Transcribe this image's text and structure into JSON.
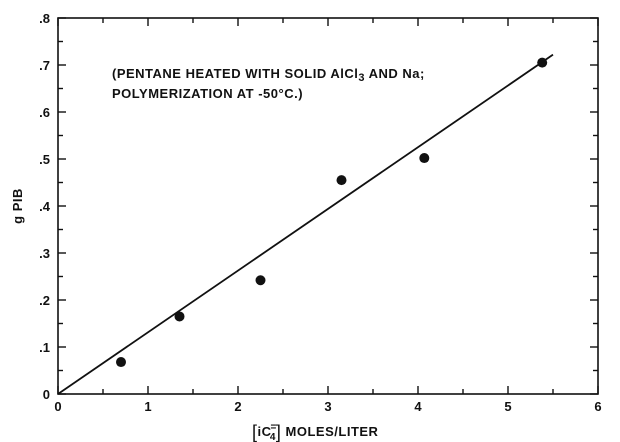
{
  "chart_data": {
    "type": "scatter",
    "title": "",
    "annotation": [
      "(PENTANE HEATED WITH SOLID AlCl",
      "3",
      " AND Na;",
      "POLYMERIZATION AT -50°C.)"
    ],
    "xlabel": {
      "bracket_open": "[",
      "base": "iC",
      "sub": "4",
      "sup": "=",
      "bracket_close": "]",
      "rest": " MOLES/LITER"
    },
    "ylabel": "g PIB",
    "xlim": [
      0,
      6
    ],
    "ylim": [
      0,
      0.8
    ],
    "x_ticks": [
      "0",
      "1",
      "2",
      "3",
      "4",
      "5",
      "6"
    ],
    "y_ticks": [
      "0",
      ".1",
      ".2",
      ".3",
      ".4",
      ".5",
      ".6",
      ".7",
      ".8"
    ],
    "grid": false,
    "points": [
      {
        "x": 0.7,
        "y": 0.068
      },
      {
        "x": 1.35,
        "y": 0.165
      },
      {
        "x": 2.25,
        "y": 0.242
      },
      {
        "x": 3.15,
        "y": 0.455
      },
      {
        "x": 4.07,
        "y": 0.502
      },
      {
        "x": 5.38,
        "y": 0.705
      }
    ],
    "fit_line": {
      "x": [
        0,
        5.5
      ],
      "y": [
        0,
        0.722
      ]
    }
  }
}
